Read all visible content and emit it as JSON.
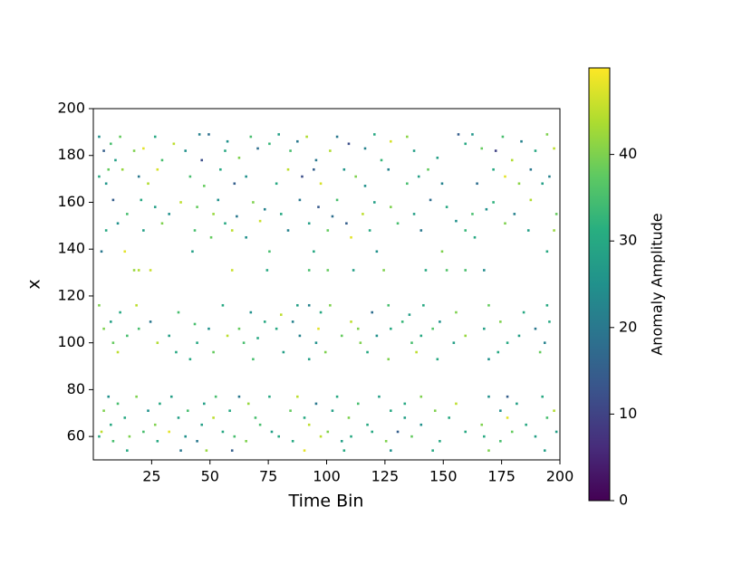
{
  "chart_data": {
    "type": "heatmap",
    "xlabel": "Time Bin",
    "ylabel": "x",
    "colorbar_label": "Anomaly Amplitude",
    "colormap": "viridis",
    "xlim": [
      0,
      200
    ],
    "ylim": [
      50,
      200
    ],
    "clim": [
      0,
      50
    ],
    "xticks": [
      25,
      50,
      75,
      100,
      125,
      150,
      175,
      200
    ],
    "yticks": [
      60,
      80,
      100,
      120,
      140,
      160,
      180,
      200
    ],
    "cticks": [
      0,
      10,
      20,
      30,
      40
    ],
    "cells": [
      [
        3,
        188,
        25
      ],
      [
        12,
        188,
        38
      ],
      [
        27,
        188,
        30
      ],
      [
        46,
        189,
        22
      ],
      [
        50,
        189,
        18
      ],
      [
        68,
        188,
        35
      ],
      [
        80,
        189,
        28
      ],
      [
        92,
        188,
        44
      ],
      [
        105,
        188,
        20
      ],
      [
        121,
        189,
        30
      ],
      [
        135,
        188,
        41
      ],
      [
        157,
        189,
        15
      ],
      [
        163,
        189,
        26
      ],
      [
        176,
        188,
        35
      ],
      [
        195,
        189,
        40
      ],
      [
        8,
        185,
        35
      ],
      [
        35,
        185,
        45
      ],
      [
        58,
        186,
        25
      ],
      [
        76,
        185,
        33
      ],
      [
        88,
        186,
        20
      ],
      [
        110,
        185,
        12
      ],
      [
        128,
        186,
        47
      ],
      [
        160,
        185,
        30
      ],
      [
        184,
        186,
        22
      ],
      [
        5,
        182,
        15
      ],
      [
        18,
        182,
        40
      ],
      [
        22,
        183,
        48
      ],
      [
        40,
        182,
        25
      ],
      [
        57,
        182,
        30
      ],
      [
        71,
        183,
        18
      ],
      [
        85,
        182,
        35
      ],
      [
        102,
        182,
        44
      ],
      [
        117,
        183,
        22
      ],
      [
        138,
        182,
        28
      ],
      [
        167,
        183,
        38
      ],
      [
        173,
        182,
        10
      ],
      [
        190,
        182,
        30
      ],
      [
        198,
        183,
        45
      ],
      [
        10,
        178,
        28
      ],
      [
        30,
        178,
        35
      ],
      [
        47,
        178,
        12
      ],
      [
        63,
        179,
        40
      ],
      [
        96,
        178,
        20
      ],
      [
        124,
        178,
        33
      ],
      [
        148,
        179,
        28
      ],
      [
        180,
        178,
        44
      ],
      [
        7,
        174,
        38
      ],
      [
        13,
        174,
        42
      ],
      [
        28,
        174,
        47
      ],
      [
        55,
        174,
        30
      ],
      [
        84,
        174,
        45
      ],
      [
        95,
        174,
        15
      ],
      [
        108,
        174,
        26
      ],
      [
        127,
        174,
        22
      ],
      [
        144,
        174,
        38
      ],
      [
        172,
        174,
        30
      ],
      [
        188,
        174,
        20
      ],
      [
        3,
        171,
        30
      ],
      [
        20,
        171,
        20
      ],
      [
        42,
        171,
        35
      ],
      [
        66,
        171,
        25
      ],
      [
        90,
        171,
        12
      ],
      [
        113,
        171,
        40
      ],
      [
        140,
        171,
        28
      ],
      [
        177,
        171,
        48
      ],
      [
        196,
        171,
        22
      ],
      [
        6,
        168,
        26
      ],
      [
        24,
        168,
        44
      ],
      [
        48,
        167,
        38
      ],
      [
        61,
        168,
        15
      ],
      [
        79,
        168,
        30
      ],
      [
        98,
        168,
        47
      ],
      [
        117,
        167,
        25
      ],
      [
        135,
        168,
        35
      ],
      [
        150,
        168,
        22
      ],
      [
        165,
        168,
        18
      ],
      [
        183,
        168,
        41
      ],
      [
        193,
        168,
        28
      ],
      [
        9,
        161,
        15
      ],
      [
        21,
        161,
        30
      ],
      [
        38,
        160,
        45
      ],
      [
        54,
        161,
        25
      ],
      [
        69,
        160,
        40
      ],
      [
        89,
        161,
        20
      ],
      [
        105,
        161,
        35
      ],
      [
        121,
        160,
        28
      ],
      [
        145,
        161,
        18
      ],
      [
        172,
        160,
        32
      ],
      [
        188,
        161,
        44
      ],
      [
        27,
        158,
        28
      ],
      [
        45,
        158,
        38
      ],
      [
        74,
        157,
        22
      ],
      [
        97,
        158,
        14
      ],
      [
        128,
        158,
        40
      ],
      [
        152,
        158,
        30
      ],
      [
        169,
        157,
        25
      ],
      [
        15,
        155,
        35
      ],
      [
        33,
        155,
        25
      ],
      [
        52,
        155,
        42
      ],
      [
        62,
        154,
        20
      ],
      [
        81,
        155,
        30
      ],
      [
        103,
        154,
        18
      ],
      [
        116,
        155,
        45
      ],
      [
        138,
        155,
        28
      ],
      [
        163,
        155,
        35
      ],
      [
        181,
        155,
        22
      ],
      [
        199,
        155,
        38
      ],
      [
        11,
        151,
        25
      ],
      [
        30,
        151,
        40
      ],
      [
        57,
        151,
        30
      ],
      [
        72,
        152,
        46
      ],
      [
        93,
        151,
        28
      ],
      [
        109,
        151,
        15
      ],
      [
        131,
        151,
        35
      ],
      [
        156,
        152,
        25
      ],
      [
        177,
        151,
        40
      ],
      [
        6,
        148,
        30
      ],
      [
        22,
        148,
        28
      ],
      [
        44,
        148,
        35
      ],
      [
        60,
        148,
        45
      ],
      [
        84,
        148,
        22
      ],
      [
        101,
        148,
        38
      ],
      [
        119,
        148,
        30
      ],
      [
        141,
        148,
        20
      ],
      [
        160,
        148,
        33
      ],
      [
        187,
        148,
        28
      ],
      [
        198,
        148,
        42
      ],
      [
        51,
        145,
        38
      ],
      [
        66,
        145,
        25
      ],
      [
        111,
        145,
        48
      ],
      [
        164,
        145,
        30
      ],
      [
        4,
        139,
        20
      ],
      [
        14,
        139,
        48
      ],
      [
        43,
        139,
        28
      ],
      [
        76,
        139,
        35
      ],
      [
        95,
        139,
        30
      ],
      [
        122,
        139,
        25
      ],
      [
        150,
        139,
        40
      ],
      [
        195,
        139,
        30
      ],
      [
        18,
        131,
        42
      ],
      [
        20,
        131,
        44
      ],
      [
        25,
        131,
        46
      ],
      [
        60,
        131,
        46
      ],
      [
        75,
        131,
        30
      ],
      [
        93,
        131,
        35
      ],
      [
        101,
        131,
        38
      ],
      [
        112,
        131,
        28
      ],
      [
        125,
        131,
        40
      ],
      [
        143,
        131,
        30
      ],
      [
        152,
        131,
        36
      ],
      [
        160,
        131,
        35
      ],
      [
        168,
        131,
        24
      ],
      [
        3,
        116,
        40
      ],
      [
        19,
        116,
        45
      ],
      [
        56,
        116,
        30
      ],
      [
        88,
        116,
        28
      ],
      [
        93,
        116,
        22
      ],
      [
        102,
        116,
        40
      ],
      [
        127,
        116,
        35
      ],
      [
        142,
        116,
        30
      ],
      [
        170,
        116,
        38
      ],
      [
        195,
        116,
        30
      ],
      [
        12,
        113,
        30
      ],
      [
        37,
        113,
        35
      ],
      [
        68,
        113,
        25
      ],
      [
        81,
        112,
        45
      ],
      [
        98,
        113,
        30
      ],
      [
        120,
        113,
        18
      ],
      [
        136,
        112,
        28
      ],
      [
        156,
        113,
        40
      ],
      [
        185,
        113,
        30
      ],
      [
        8,
        109,
        28
      ],
      [
        25,
        109,
        20
      ],
      [
        44,
        108,
        35
      ],
      [
        74,
        109,
        30
      ],
      [
        86,
        109,
        22
      ],
      [
        111,
        109,
        45
      ],
      [
        133,
        109,
        33
      ],
      [
        149,
        109,
        25
      ],
      [
        175,
        109,
        40
      ],
      [
        196,
        109,
        30
      ],
      [
        5,
        106,
        40
      ],
      [
        20,
        106,
        35
      ],
      [
        50,
        106,
        25
      ],
      [
        63,
        106,
        38
      ],
      [
        79,
        106,
        30
      ],
      [
        97,
        106,
        48
      ],
      [
        114,
        106,
        40
      ],
      [
        128,
        106,
        30
      ],
      [
        146,
        106,
        36
      ],
      [
        168,
        106,
        28
      ],
      [
        190,
        106,
        20
      ],
      [
        15,
        103,
        35
      ],
      [
        33,
        103,
        28
      ],
      [
        58,
        103,
        45
      ],
      [
        71,
        102,
        30
      ],
      [
        89,
        103,
        22
      ],
      [
        107,
        103,
        38
      ],
      [
        122,
        103,
        25
      ],
      [
        141,
        103,
        30
      ],
      [
        160,
        103,
        42
      ],
      [
        183,
        103,
        28
      ],
      [
        9,
        100,
        38
      ],
      [
        28,
        100,
        44
      ],
      [
        45,
        100,
        30
      ],
      [
        65,
        100,
        35
      ],
      [
        96,
        100,
        25
      ],
      [
        115,
        100,
        40
      ],
      [
        137,
        100,
        35
      ],
      [
        155,
        100,
        28
      ],
      [
        178,
        100,
        30
      ],
      [
        194,
        100,
        22
      ],
      [
        11,
        96,
        45
      ],
      [
        36,
        96,
        30
      ],
      [
        52,
        96,
        38
      ],
      [
        82,
        96,
        28
      ],
      [
        100,
        96,
        40
      ],
      [
        118,
        96,
        30
      ],
      [
        139,
        96,
        45
      ],
      [
        174,
        96,
        30
      ],
      [
        192,
        96,
        38
      ],
      [
        42,
        93,
        30
      ],
      [
        69,
        93,
        35
      ],
      [
        93,
        93,
        28
      ],
      [
        127,
        93,
        40
      ],
      [
        148,
        93,
        30
      ],
      [
        170,
        93,
        25
      ],
      [
        7,
        77,
        25
      ],
      [
        19,
        77,
        40
      ],
      [
        34,
        77,
        28
      ],
      [
        53,
        77,
        35
      ],
      [
        63,
        77,
        20
      ],
      [
        76,
        77,
        30
      ],
      [
        88,
        77,
        45
      ],
      [
        105,
        77,
        30
      ],
      [
        123,
        77,
        28
      ],
      [
        141,
        77,
        40
      ],
      [
        170,
        77,
        25
      ],
      [
        178,
        77,
        15
      ],
      [
        193,
        77,
        30
      ],
      [
        11,
        74,
        35
      ],
      [
        29,
        74,
        30
      ],
      [
        48,
        74,
        28
      ],
      [
        67,
        74,
        42
      ],
      [
        96,
        74,
        20
      ],
      [
        114,
        74,
        35
      ],
      [
        134,
        74,
        30
      ],
      [
        156,
        74,
        45
      ],
      [
        182,
        74,
        28
      ],
      [
        5,
        71,
        40
      ],
      [
        24,
        71,
        25
      ],
      [
        41,
        71,
        35
      ],
      [
        59,
        71,
        30
      ],
      [
        85,
        71,
        38
      ],
      [
        103,
        71,
        28
      ],
      [
        128,
        71,
        30
      ],
      [
        147,
        71,
        40
      ],
      [
        175,
        71,
        25
      ],
      [
        198,
        71,
        44
      ],
      [
        14,
        68,
        30
      ],
      [
        37,
        68,
        28
      ],
      [
        52,
        68,
        45
      ],
      [
        70,
        68,
        35
      ],
      [
        91,
        68,
        30
      ],
      [
        110,
        68,
        40
      ],
      [
        134,
        68,
        28
      ],
      [
        153,
        68,
        30
      ],
      [
        178,
        68,
        48
      ],
      [
        195,
        68,
        35
      ],
      [
        8,
        65,
        30
      ],
      [
        27,
        65,
        40
      ],
      [
        47,
        65,
        28
      ],
      [
        72,
        65,
        35
      ],
      [
        93,
        65,
        45
      ],
      [
        118,
        65,
        30
      ],
      [
        141,
        65,
        25
      ],
      [
        167,
        65,
        40
      ],
      [
        186,
        65,
        30
      ],
      [
        4,
        62,
        45
      ],
      [
        22,
        62,
        35
      ],
      [
        33,
        62,
        48
      ],
      [
        56,
        62,
        30
      ],
      [
        77,
        62,
        28
      ],
      [
        101,
        62,
        40
      ],
      [
        120,
        62,
        30
      ],
      [
        131,
        62,
        15
      ],
      [
        160,
        62,
        30
      ],
      [
        180,
        62,
        38
      ],
      [
        199,
        62,
        28
      ],
      [
        3,
        60,
        30
      ],
      [
        16,
        60,
        40
      ],
      [
        40,
        60,
        25
      ],
      [
        61,
        60,
        35
      ],
      [
        80,
        60,
        30
      ],
      [
        98,
        60,
        45
      ],
      [
        111,
        60,
        30
      ],
      [
        137,
        60,
        38
      ],
      [
        168,
        60,
        30
      ],
      [
        190,
        60,
        28
      ],
      [
        9,
        58,
        35
      ],
      [
        28,
        58,
        30
      ],
      [
        45,
        58,
        20
      ],
      [
        66,
        58,
        40
      ],
      [
        86,
        58,
        30
      ],
      [
        107,
        58,
        28
      ],
      [
        126,
        58,
        40
      ],
      [
        149,
        58,
        30
      ],
      [
        175,
        58,
        35
      ],
      [
        15,
        54,
        30
      ],
      [
        38,
        54,
        20
      ],
      [
        49,
        54,
        42
      ],
      [
        60,
        54,
        15
      ],
      [
        91,
        54,
        48
      ],
      [
        108,
        54,
        30
      ],
      [
        128,
        54,
        25
      ],
      [
        146,
        54,
        30
      ],
      [
        170,
        54,
        40
      ],
      [
        194,
        54,
        28
      ]
    ]
  }
}
